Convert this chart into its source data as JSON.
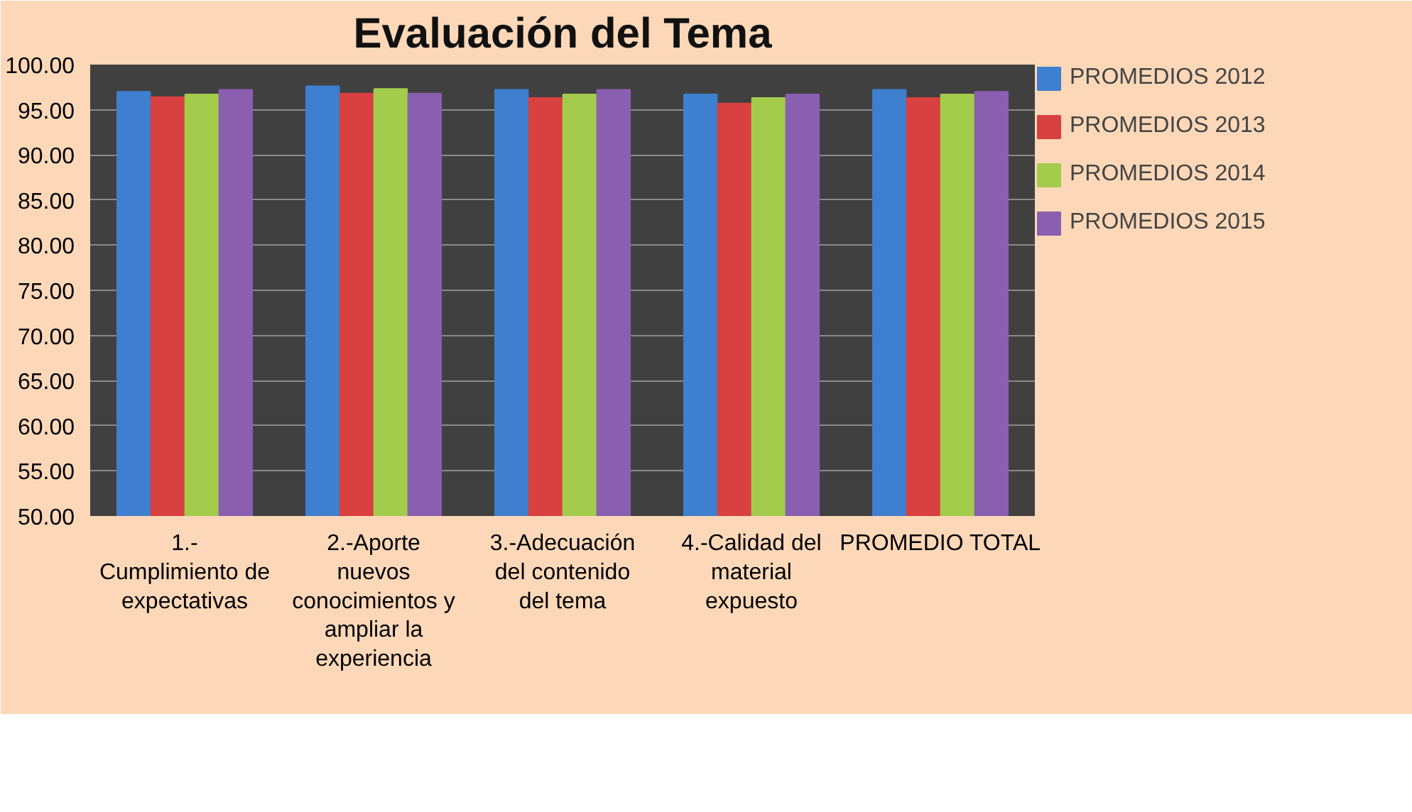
{
  "chart_data": {
    "type": "bar",
    "title": "Evaluación del Tema",
    "categories": [
      "1.- Cumplimiento de expectativas",
      "2.-Aporte nuevos conocimientos y ampliar la experiencia",
      "3.-Adecuación del contenido del tema",
      "4.-Calidad del material expuesto",
      "PROMEDIO TOTAL"
    ],
    "series": [
      {
        "name": "PROMEDIOS 2012",
        "color": "#3f7fd0",
        "values": [
          97.0,
          97.6,
          97.2,
          96.7,
          97.2
        ]
      },
      {
        "name": "PROMEDIOS 2013",
        "color": "#d94040",
        "values": [
          96.4,
          96.8,
          96.3,
          95.7,
          96.3
        ]
      },
      {
        "name": "PROMEDIOS 2014",
        "color": "#a3cc4c",
        "values": [
          96.7,
          97.3,
          96.7,
          96.3,
          96.7
        ]
      },
      {
        "name": "PROMEDIOS 2015",
        "color": "#8a5fb0",
        "values": [
          97.2,
          96.8,
          97.2,
          96.7,
          97.0
        ]
      }
    ],
    "ylim": [
      50,
      100
    ],
    "yticks": [
      {
        "value": 50,
        "label": "50.00"
      },
      {
        "value": 55,
        "label": "55.00"
      },
      {
        "value": 60,
        "label": "60.00"
      },
      {
        "value": 65,
        "label": "65.00"
      },
      {
        "value": 70,
        "label": "70.00"
      },
      {
        "value": 75,
        "label": "75.00"
      },
      {
        "value": 80,
        "label": "80.00"
      },
      {
        "value": 85,
        "label": "85.00"
      },
      {
        "value": 90,
        "label": "90.00"
      },
      {
        "value": 95,
        "label": "95.00"
      },
      {
        "value": 100,
        "label": "100.00"
      }
    ],
    "grid": "y",
    "legend": "right"
  }
}
